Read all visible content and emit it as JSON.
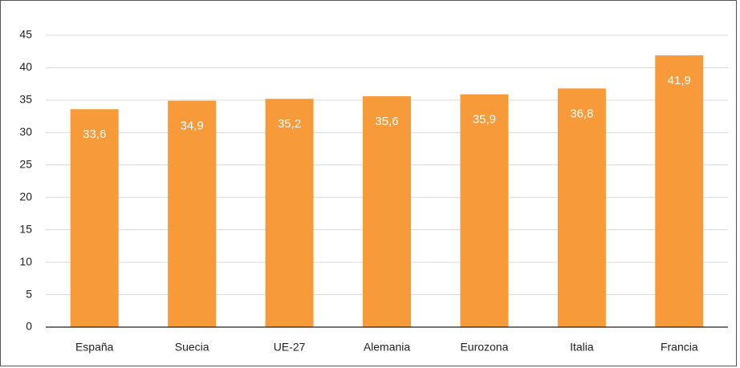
{
  "chart_data": {
    "type": "bar",
    "categories": [
      "España",
      "Suecia",
      "UE-27",
      "Alemania",
      "Eurozona",
      "Italia",
      "Francia"
    ],
    "values": [
      33.6,
      34.9,
      35.2,
      35.6,
      35.9,
      36.8,
      41.9
    ],
    "value_labels": [
      "33,6",
      "34,9",
      "35,2",
      "35,6",
      "35,9",
      "36,8",
      "41,9"
    ],
    "color": "#f79a3a",
    "ylim": [
      0,
      45
    ],
    "yticks": [
      0,
      5,
      10,
      15,
      20,
      25,
      30,
      35,
      40,
      45
    ],
    "grid": true
  }
}
